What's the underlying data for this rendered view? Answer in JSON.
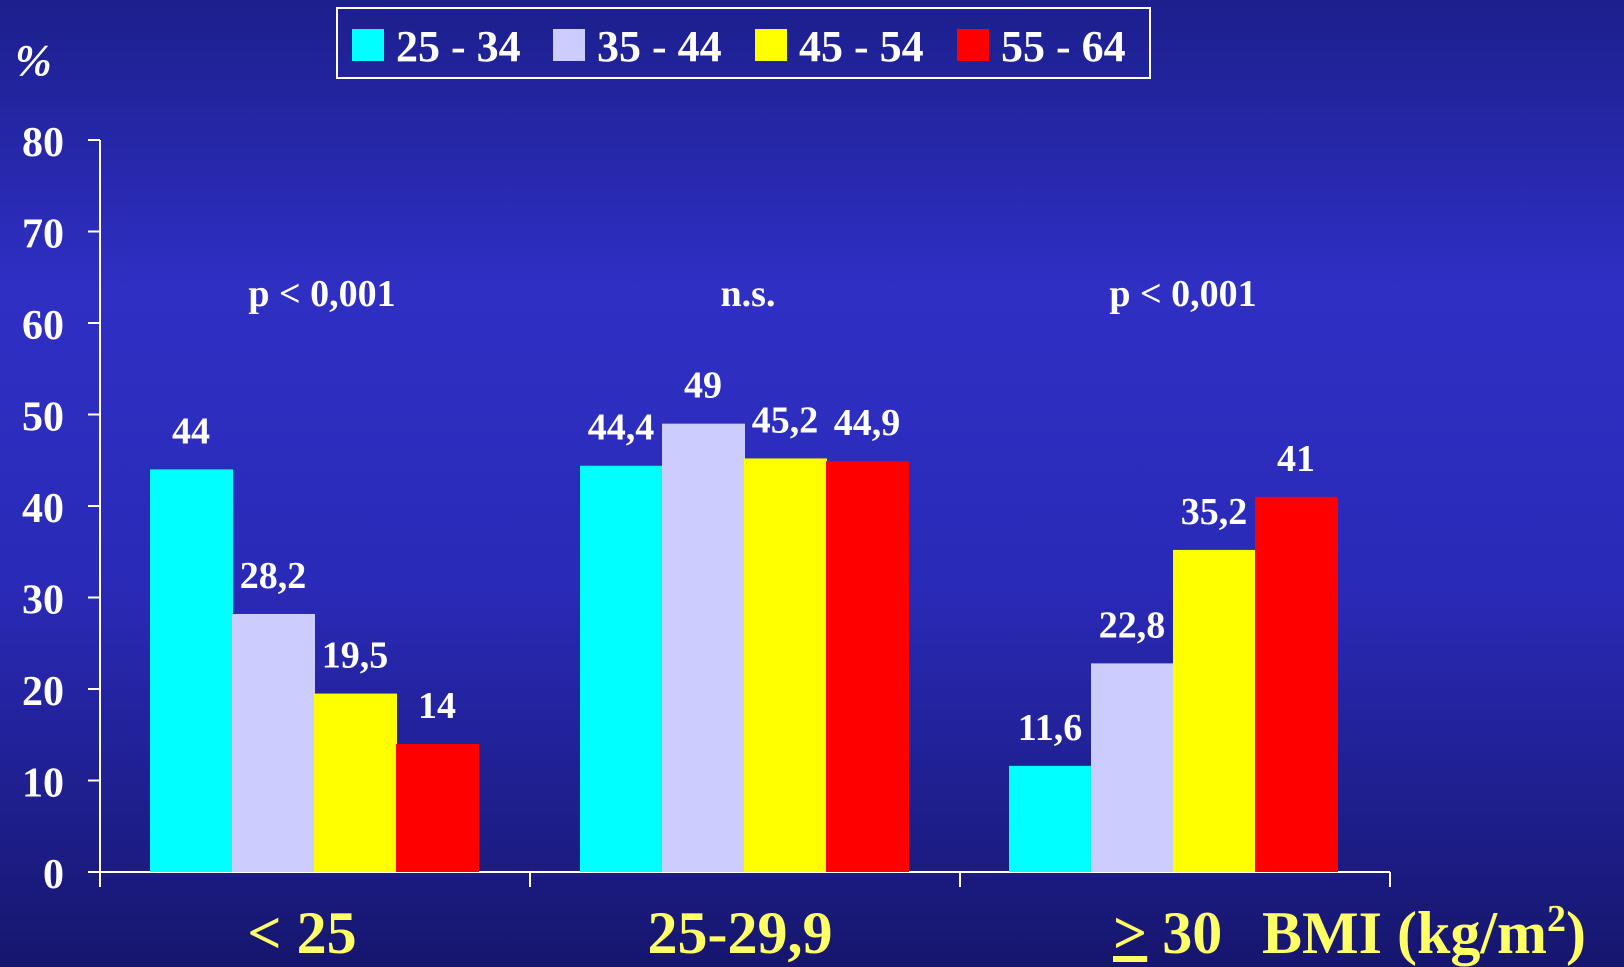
{
  "chart_data": {
    "type": "bar",
    "ylabel": "%",
    "ylim": [
      0,
      80
    ],
    "yticks": [
      0,
      10,
      20,
      30,
      40,
      50,
      60,
      70,
      80
    ],
    "categories": [
      "< 25",
      "25-29,9",
      "> 30"
    ],
    "xlabel": "BMI (kg/m²)",
    "series": [
      {
        "name": "25 - 34",
        "color": "#00ffff",
        "values": [
          44,
          44.4,
          11.6
        ],
        "labels": [
          "44",
          "44,4",
          "11,6"
        ]
      },
      {
        "name": "35 - 44",
        "color": "#ccccff",
        "values": [
          28.2,
          49,
          22.8
        ],
        "labels": [
          "28,2",
          "49",
          "22,8"
        ]
      },
      {
        "name": "45 - 54",
        "color": "#ffff00",
        "values": [
          19.5,
          45.2,
          35.2
        ],
        "labels": [
          "19,5",
          "45,2",
          "35,2"
        ]
      },
      {
        "name": "55 - 64",
        "color": "#ff0000",
        "values": [
          14,
          44.9,
          41
        ],
        "labels": [
          "14",
          "44,9",
          "41"
        ]
      }
    ],
    "annotations": [
      "p < 0,001",
      "n.s.",
      "p < 0,001"
    ],
    "legend": "top-center",
    "grid": false,
    "colors": {
      "axis": "#ffffff",
      "text": "#ffffff",
      "category_label": "#ffff66"
    }
  }
}
